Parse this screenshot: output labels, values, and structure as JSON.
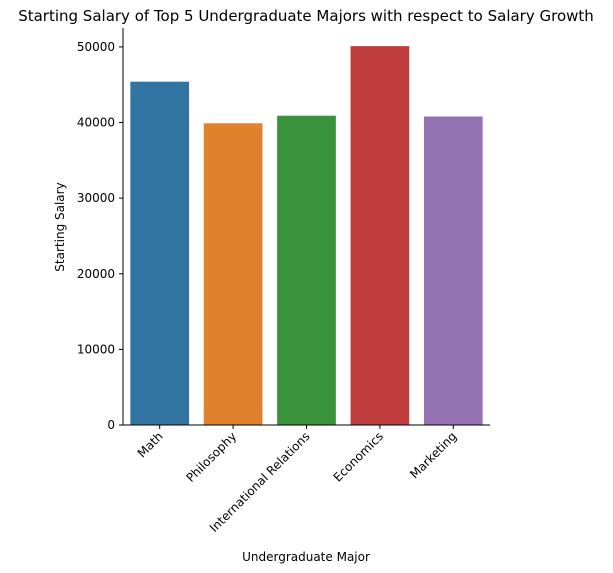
{
  "chart_data": {
    "type": "bar",
    "title": "Starting Salary of Top 5 Undergraduate Majors with respect to Salary Growth",
    "xlabel": "Undergraduate Major",
    "ylabel": "Starting Salary",
    "categories": [
      "Math",
      "Philosophy",
      "International Relations",
      "Economics",
      "Marketing"
    ],
    "values": [
      45400,
      39900,
      40900,
      50100,
      40800
    ],
    "colors": [
      "#3274a1",
      "#e1812c",
      "#3a923a",
      "#c03d3e",
      "#9372b2"
    ],
    "ylim": [
      0,
      52500
    ],
    "yticks": [
      0,
      10000,
      20000,
      30000,
      40000,
      50000
    ],
    "grid": false,
    "legend": "none"
  }
}
